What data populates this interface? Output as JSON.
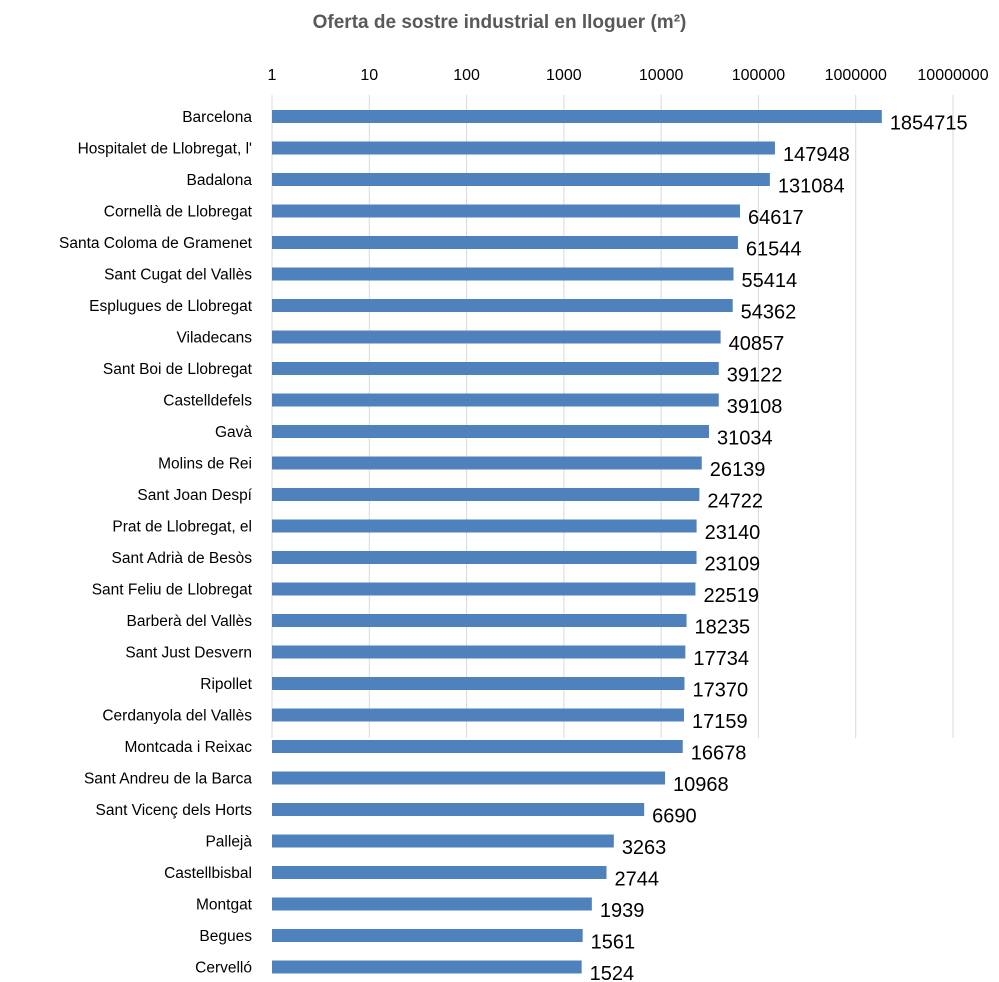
{
  "chart_data": {
    "type": "bar",
    "orientation": "horizontal",
    "title": "Oferta de sostre industrial en lloguer (m²)",
    "xlabel": "",
    "ylabel": "",
    "x_scale": "log10",
    "xlim": [
      1,
      10000000
    ],
    "x_ticks": [
      "1",
      "10",
      "100",
      "1000",
      "10000",
      "100000",
      "1000000",
      "10000000"
    ],
    "x_tick_values": [
      1,
      10,
      100,
      1000,
      10000,
      100000,
      1000000,
      10000000
    ],
    "axis_position": "top",
    "grid": true,
    "legend": "none",
    "bar_color": "#4f81bd",
    "categories": [
      "Barcelona",
      "Hospitalet de Llobregat, l'",
      "Badalona",
      "Cornellà de Llobregat",
      "Santa Coloma de Gramenet",
      "Sant Cugat del Vallès",
      "Esplugues de Llobregat",
      "Viladecans",
      "Sant Boi de Llobregat",
      "Castelldefels",
      "Gavà",
      "Molins de Rei",
      "Sant Joan Despí",
      "Prat de Llobregat, el",
      "Sant Adrià de Besòs",
      "Sant Feliu de Llobregat",
      "Barberà del Vallès",
      "Sant Just Desvern",
      "Ripollet",
      "Cerdanyola del Vallès",
      "Montcada i Reixac",
      "Sant Andreu de la Barca",
      "Sant Vicenç dels Horts",
      "Pallejà",
      "Castellbisbal",
      "Montgat",
      "Begues",
      "Cervelló"
    ],
    "values": [
      1854715,
      147948,
      131084,
      64617,
      61544,
      55414,
      54362,
      40857,
      39122,
      39108,
      31034,
      26139,
      24722,
      23140,
      23109,
      22519,
      18235,
      17734,
      17370,
      17159,
      16678,
      10968,
      6690,
      3263,
      2744,
      1939,
      1561,
      1524
    ]
  }
}
